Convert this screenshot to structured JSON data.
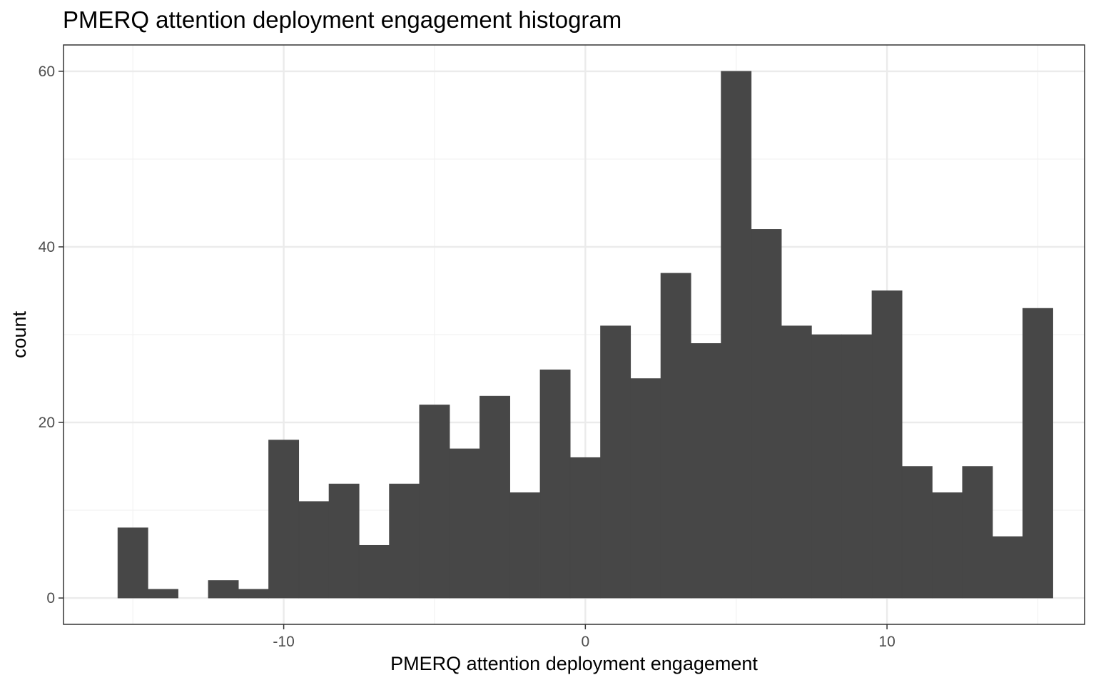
{
  "chart_data": {
    "type": "bar",
    "title": "PMERQ attention deployment engagement histogram",
    "xlabel": "PMERQ attention deployment engagement",
    "ylabel": "count",
    "xlim": [
      -17.3,
      16.55
    ],
    "ylim": [
      -3,
      63
    ],
    "x_ticks": [
      -10,
      0,
      10
    ],
    "x_tick_labels": [
      "-10",
      "0",
      "10"
    ],
    "y_ticks": [
      0,
      20,
      40,
      60
    ],
    "y_tick_labels": [
      "0",
      "20",
      "40",
      "60"
    ],
    "x_minor_ticks": [
      -15,
      -5,
      5,
      15
    ],
    "y_minor_ticks": [
      10,
      30,
      50
    ],
    "grid": true,
    "bin_width": 1.0,
    "bins": [
      {
        "x0": -15.5,
        "x1": -14.5,
        "count": 8
      },
      {
        "x0": -14.5,
        "x1": -13.5,
        "count": 1
      },
      {
        "x0": -13.5,
        "x1": -12.5,
        "count": 0
      },
      {
        "x0": -12.5,
        "x1": -11.5,
        "count": 2
      },
      {
        "x0": -11.5,
        "x1": -10.5,
        "count": 1
      },
      {
        "x0": -10.5,
        "x1": -9.5,
        "count": 18
      },
      {
        "x0": -9.5,
        "x1": -8.5,
        "count": 11
      },
      {
        "x0": -8.5,
        "x1": -7.5,
        "count": 13
      },
      {
        "x0": -7.5,
        "x1": -6.5,
        "count": 6
      },
      {
        "x0": -6.5,
        "x1": -5.5,
        "count": 13
      },
      {
        "x0": -5.5,
        "x1": -4.5,
        "count": 22
      },
      {
        "x0": -4.5,
        "x1": -3.5,
        "count": 17
      },
      {
        "x0": -3.5,
        "x1": -2.5,
        "count": 23
      },
      {
        "x0": -2.5,
        "x1": -1.5,
        "count": 12
      },
      {
        "x0": -1.5,
        "x1": -0.5,
        "count": 26
      },
      {
        "x0": -0.5,
        "x1": 0.5,
        "count": 16
      },
      {
        "x0": 0.5,
        "x1": 1.5,
        "count": 31
      },
      {
        "x0": 1.5,
        "x1": 2.5,
        "count": 25
      },
      {
        "x0": 2.5,
        "x1": 3.5,
        "count": 37
      },
      {
        "x0": 3.5,
        "x1": 4.5,
        "count": 29
      },
      {
        "x0": 4.5,
        "x1": 5.5,
        "count": 60
      },
      {
        "x0": 5.5,
        "x1": 6.5,
        "count": 42
      },
      {
        "x0": 6.5,
        "x1": 7.5,
        "count": 31
      },
      {
        "x0": 7.5,
        "x1": 8.5,
        "count": 30
      },
      {
        "x0": 8.5,
        "x1": 9.5,
        "count": 30
      },
      {
        "x0": 9.5,
        "x1": 10.5,
        "count": 35
      },
      {
        "x0": 10.5,
        "x1": 11.5,
        "count": 15
      },
      {
        "x0": 11.5,
        "x1": 12.5,
        "count": 12
      },
      {
        "x0": 12.5,
        "x1": 13.5,
        "count": 15
      },
      {
        "x0": 13.5,
        "x1": 14.5,
        "count": 7
      },
      {
        "x0": 14.5,
        "x1": 15.5,
        "count": 33
      }
    ],
    "colors": {
      "bar": "#474747",
      "panel_border": "#333333",
      "grid_major": "#ebebeb",
      "grid_minor": "#f2f2f2",
      "tick_label": "#4d4d4d",
      "tick_mark": "#333333",
      "text": "#000000"
    }
  }
}
